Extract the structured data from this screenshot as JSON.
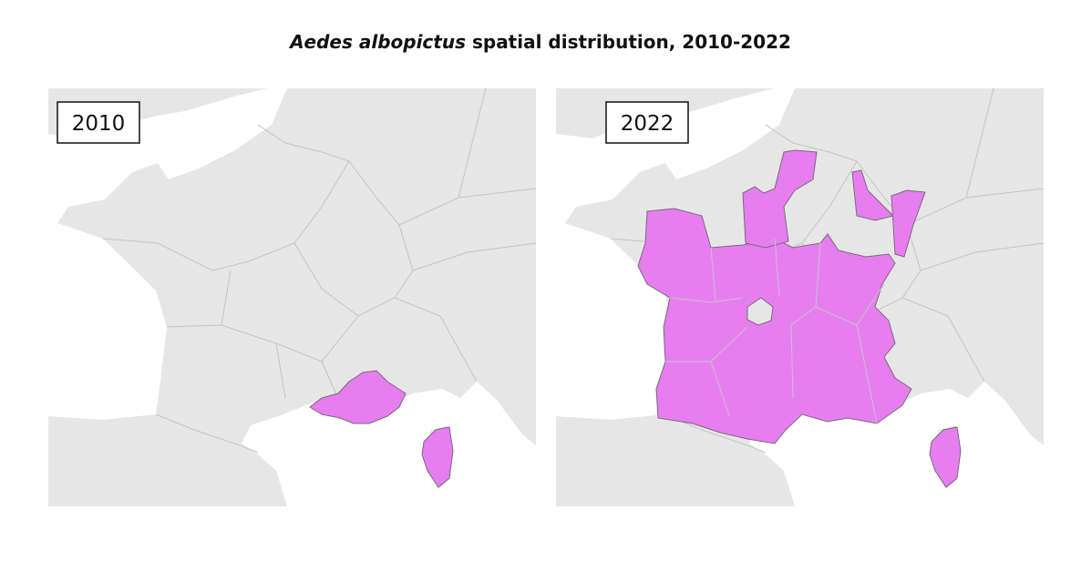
{
  "title": {
    "species": "Aedes albopictus",
    "text": "spatial distribution, 2010-2022"
  },
  "panels": [
    {
      "label": "2010"
    },
    {
      "label": "2022"
    }
  ]
}
